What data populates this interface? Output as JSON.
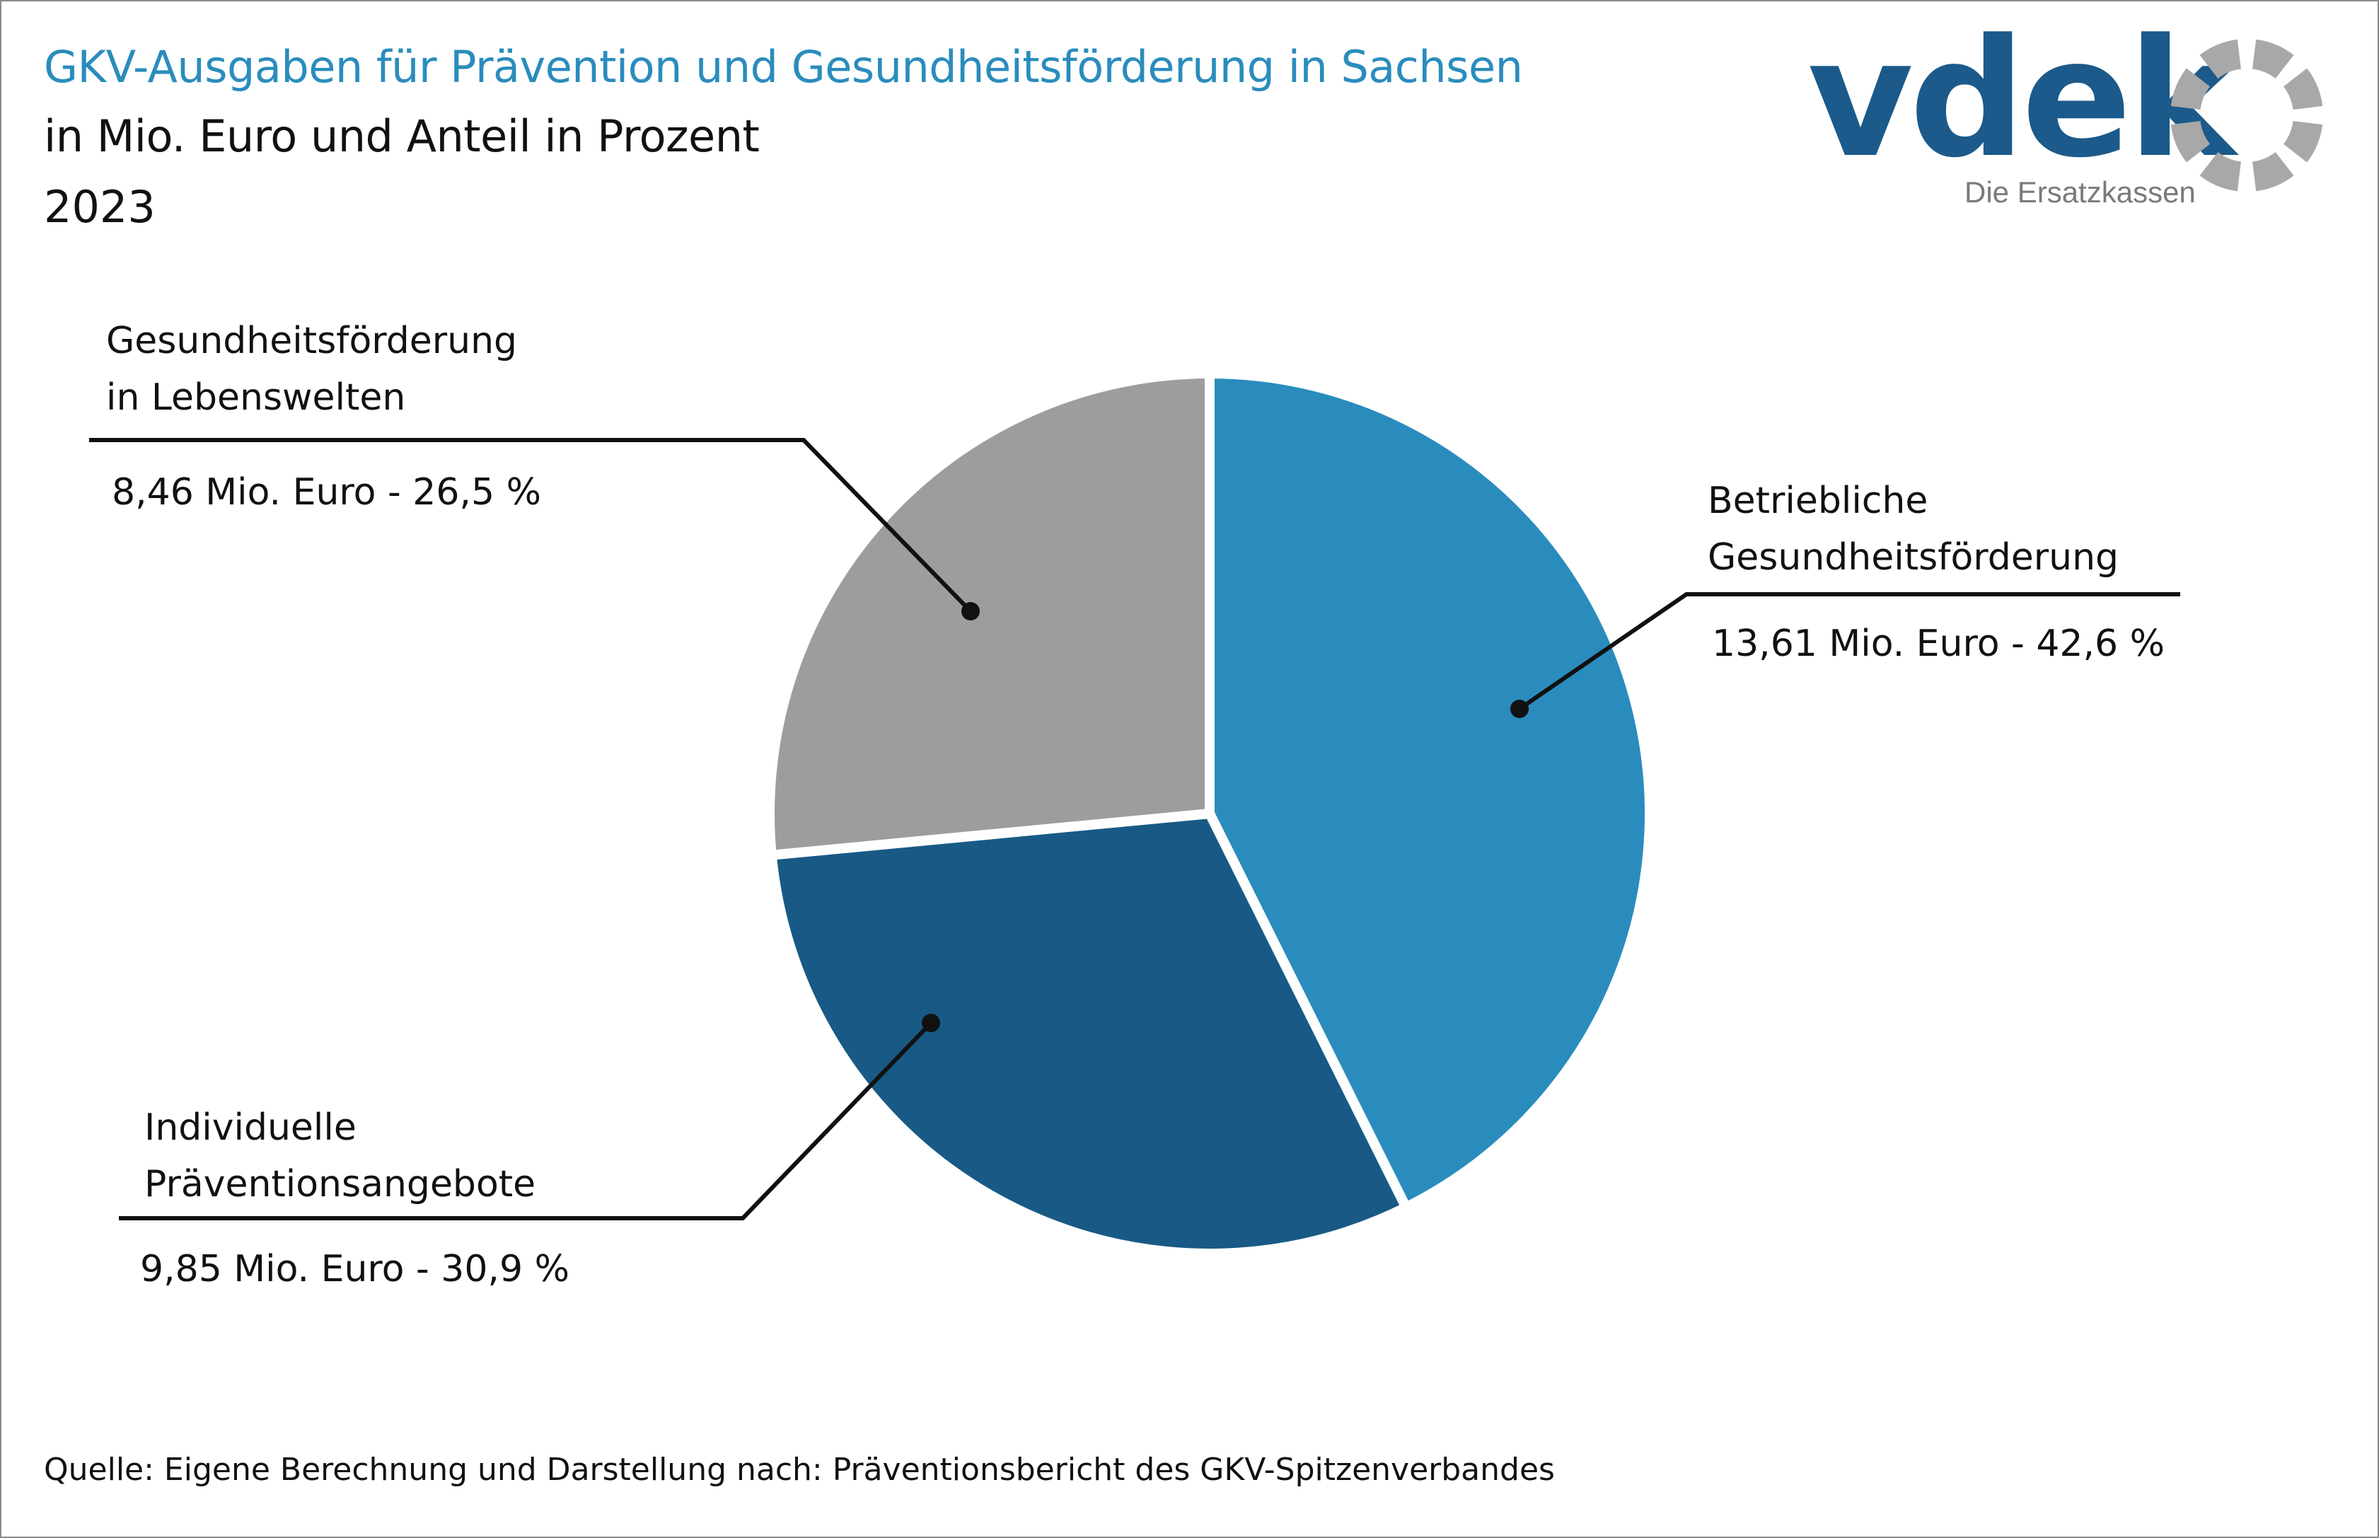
{
  "header": {
    "title": "GKV-Ausgaben für Prävention und Gesundheitsförderung in Sachsen",
    "subtitle": "in Mio. Euro und Anteil in Prozent",
    "year": "2023"
  },
  "logo": {
    "wordmark": "vdek",
    "tagline": "Die Ersatzkassen"
  },
  "colors": {
    "title": "#2a8cbd",
    "betriebliche": "#2a8cbd",
    "individuelle": "#185a85",
    "lebenswelten": "#9d9d9d",
    "logo_text": "#1b5a8a",
    "logo_ring": "#a8a8a8"
  },
  "chart_data": {
    "type": "pie",
    "unit": "Mio. Euro",
    "slices": [
      {
        "label_line1": "Betriebliche",
        "label_line2": "Gesundheitsförderung",
        "value": 13.61,
        "percent": 42.6,
        "value_text": "13,61 Mio. Euro - 42,6 %",
        "color": "#2a8cbd"
      },
      {
        "label_line1": "Individuelle",
        "label_line2": "Präventionsangebote",
        "value": 9.85,
        "percent": 30.9,
        "value_text": "9,85 Mio. Euro - 30,9 %",
        "color": "#185a85"
      },
      {
        "label_line1": "Gesundheitsförderung",
        "label_line2": "in Lebenswelten",
        "value": 8.46,
        "percent": 26.5,
        "value_text": "8,46 Mio. Euro - 26,5 %",
        "color": "#9d9d9d"
      }
    ]
  },
  "footer": {
    "source": "Quelle: Eigene Berechnung und Darstellung nach: Präventionsbericht des GKV-Spitzenverbandes"
  }
}
